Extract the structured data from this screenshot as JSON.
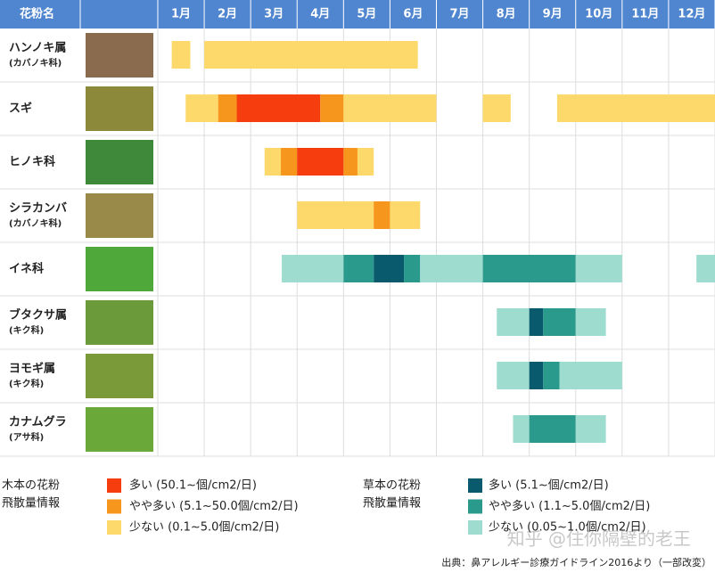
{
  "chart_data": {
    "type": "gantt",
    "header": "花粉名",
    "categories": [
      "1月",
      "2月",
      "3月",
      "4月",
      "5月",
      "6月",
      "7月",
      "8月",
      "9月",
      "10月",
      "11月",
      "12月"
    ],
    "xlim": [
      1,
      13
    ],
    "rows": [
      {
        "name": "ハンノキ属",
        "sub": "(カバノキ科)",
        "segments": [
          {
            "start": 1.3,
            "end": 1.7,
            "color": "#fdd96b"
          },
          {
            "start": 2.0,
            "end": 6.6,
            "color": "#fdd96b"
          }
        ]
      },
      {
        "name": "スギ",
        "segments": [
          {
            "start": 1.6,
            "end": 2.3,
            "color": "#fdd96b"
          },
          {
            "start": 2.3,
            "end": 2.7,
            "color": "#f7961c"
          },
          {
            "start": 2.7,
            "end": 4.5,
            "color": "#f53d0e"
          },
          {
            "start": 4.5,
            "end": 5.0,
            "color": "#f7961c"
          },
          {
            "start": 5.0,
            "end": 7.0,
            "color": "#fdd96b"
          },
          {
            "start": 8.0,
            "end": 8.6,
            "color": "#fdd96b"
          },
          {
            "start": 9.6,
            "end": 13.0,
            "color": "#fdd96b"
          }
        ]
      },
      {
        "name": "ヒノキ科",
        "segments": [
          {
            "start": 3.3,
            "end": 3.65,
            "color": "#fdd96b"
          },
          {
            "start": 3.65,
            "end": 4.0,
            "color": "#f7961c"
          },
          {
            "start": 4.0,
            "end": 5.0,
            "color": "#f53d0e"
          },
          {
            "start": 5.0,
            "end": 5.3,
            "color": "#f7961c"
          },
          {
            "start": 5.3,
            "end": 5.65,
            "color": "#fdd96b"
          }
        ]
      },
      {
        "name": "シラカンバ",
        "sub": "(カバノキ科)",
        "segments": [
          {
            "start": 4.0,
            "end": 5.65,
            "color": "#fdd96b"
          },
          {
            "start": 5.65,
            "end": 6.0,
            "color": "#f7961c"
          },
          {
            "start": 6.0,
            "end": 6.65,
            "color": "#fdd96b"
          }
        ]
      },
      {
        "name": "イネ科",
        "segments": [
          {
            "start": 3.67,
            "end": 5.0,
            "color": "#9fdcd0"
          },
          {
            "start": 5.0,
            "end": 5.65,
            "color": "#2a9a8c"
          },
          {
            "start": 5.65,
            "end": 6.3,
            "color": "#0a5a6e"
          },
          {
            "start": 6.3,
            "end": 6.65,
            "color": "#2a9a8c"
          },
          {
            "start": 6.65,
            "end": 8.0,
            "color": "#9fdcd0"
          },
          {
            "start": 8.0,
            "end": 10.0,
            "color": "#2a9a8c"
          },
          {
            "start": 10.0,
            "end": 11.0,
            "color": "#9fdcd0"
          },
          {
            "start": 12.6,
            "end": 13.0,
            "color": "#9fdcd0"
          }
        ]
      },
      {
        "name": "ブタクサ属",
        "sub": "(キク科)",
        "segments": [
          {
            "start": 8.3,
            "end": 9.0,
            "color": "#9fdcd0"
          },
          {
            "start": 9.0,
            "end": 9.3,
            "color": "#0a5a6e"
          },
          {
            "start": 9.3,
            "end": 10.0,
            "color": "#2a9a8c"
          },
          {
            "start": 10.0,
            "end": 10.65,
            "color": "#9fdcd0"
          }
        ]
      },
      {
        "name": "ヨモギ属",
        "sub": "(キク科)",
        "segments": [
          {
            "start": 8.3,
            "end": 9.0,
            "color": "#9fdcd0"
          },
          {
            "start": 9.0,
            "end": 9.3,
            "color": "#0a5a6e"
          },
          {
            "start": 9.3,
            "end": 9.65,
            "color": "#2a9a8c"
          },
          {
            "start": 9.65,
            "end": 11.0,
            "color": "#9fdcd0"
          }
        ]
      },
      {
        "name": "カナムグラ",
        "sub": "(アサ科)",
        "segments": [
          {
            "start": 8.65,
            "end": 9.0,
            "color": "#9fdcd0"
          },
          {
            "start": 9.0,
            "end": 10.0,
            "color": "#2a9a8c"
          },
          {
            "start": 10.0,
            "end": 10.65,
            "color": "#9fdcd0"
          }
        ]
      }
    ],
    "legend_groups": [
      {
        "title": [
          "木本の花粉",
          "飛散量情報"
        ],
        "items": [
          {
            "label": "多い (50.1~個/cm2/日)",
            "color": "#f53d0e"
          },
          {
            "label": "やや多い (5.1~50.0個/cm2/日)",
            "color": "#f7961c"
          },
          {
            "label": "少ない (0.1~5.0個/cm2/日)",
            "color": "#fdd96b"
          }
        ]
      },
      {
        "title": [
          "草本の花粉",
          "飛散量情報"
        ],
        "items": [
          {
            "label": "多い (5.1~個/cm2/日)",
            "color": "#0a5a6e"
          },
          {
            "label": "やや多い (1.1~5.0個/cm2/日)",
            "color": "#2a9a8c"
          },
          {
            "label": "少ない (0.05~1.0個/cm2/日)",
            "color": "#9fdcd0"
          }
        ]
      }
    ],
    "source": "出典：鼻アレルギー診療ガイドライン2016より（一部改変）",
    "watermark": "知乎 @住你隔壁的老王"
  }
}
